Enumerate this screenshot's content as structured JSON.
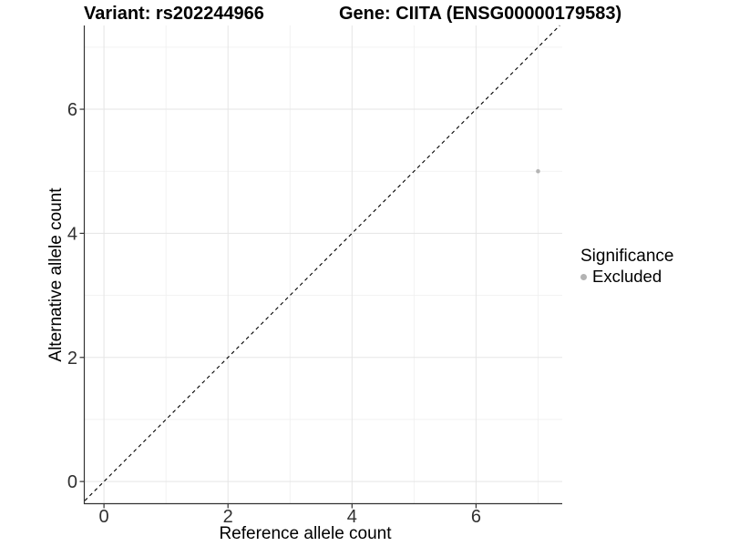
{
  "chart_data": {
    "type": "scatter",
    "title_left": "Variant: rs202244966",
    "title_right": "Gene: CIITA (ENSG00000179583)",
    "xlabel": "Reference allele count",
    "ylabel": "Alternative allele count",
    "xlim": [
      -0.31,
      7.39
    ],
    "ylim": [
      -0.35,
      7.35
    ],
    "x_major_ticks": [
      0,
      2,
      4,
      6
    ],
    "x_minor_ticks": [
      1,
      3,
      5,
      7
    ],
    "y_major_ticks": [
      0,
      2,
      4,
      6
    ],
    "y_minor_ticks": [
      1,
      3,
      5,
      7
    ],
    "grid": "major and minor gridlines on white panel",
    "points": [
      {
        "x": 7,
        "y": 5,
        "series": "Excluded"
      }
    ],
    "reference_line": {
      "kind": "identity",
      "slope": 1,
      "intercept": 0,
      "style": "dashed"
    },
    "legend": {
      "title": "Significance",
      "position": "right",
      "entries": [
        {
          "label": "Excluded",
          "marker": "circle"
        }
      ]
    }
  },
  "colors": {
    "background": "#ffffff",
    "point": "#b5b5b5",
    "legend_marker": "#b3b3b3",
    "axis_line": "#333333",
    "tick_text": "#303030",
    "grid_major": "#e5e5e5",
    "grid_minor": "#efefef",
    "reference_line": "#000000",
    "title_text": "#000000"
  }
}
